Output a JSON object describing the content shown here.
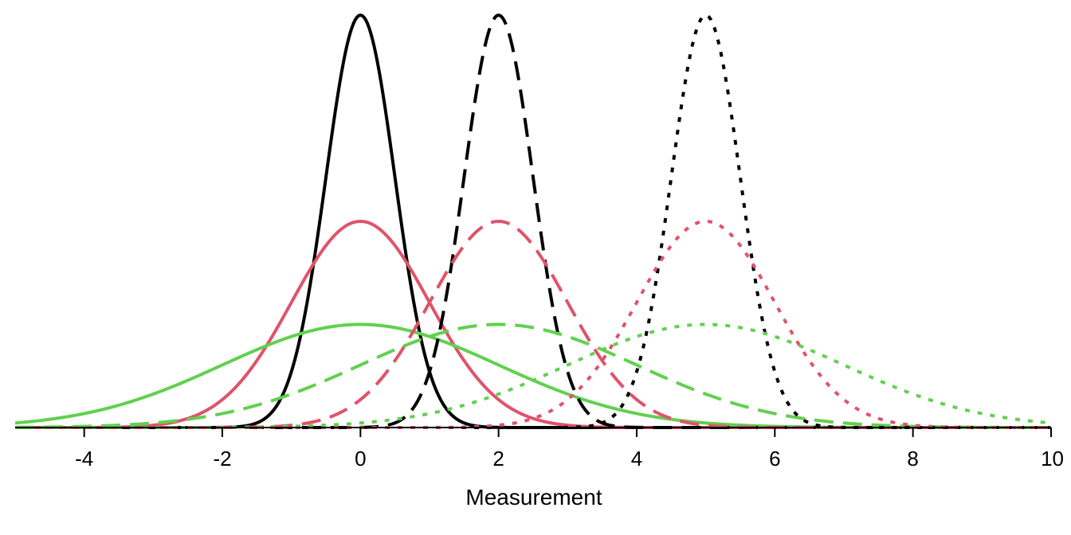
{
  "chart_data": {
    "type": "line",
    "title": "",
    "xlabel": "Measurement",
    "ylabel": "",
    "xlim": [
      -5,
      10
    ],
    "ylim": [
      0,
      0.4
    ],
    "x_ticks": [
      -4,
      -2,
      0,
      2,
      4,
      6,
      8,
      10
    ],
    "x_tick_labels": [
      "-4",
      "-2",
      "0",
      "2",
      "4",
      "6",
      "8",
      "10"
    ],
    "y_axis_visible": false,
    "grid": false,
    "legend": "none",
    "curve_type": "normal density",
    "series": [
      {
        "mean": 0,
        "sd": 0.5,
        "color": "#000000",
        "linestyle": "solid"
      },
      {
        "mean": 0,
        "sd": 1,
        "color": "#DF536B",
        "linestyle": "solid"
      },
      {
        "mean": 0,
        "sd": 2,
        "color": "#61D04F",
        "linestyle": "solid"
      },
      {
        "mean": 2,
        "sd": 0.5,
        "color": "#000000",
        "linestyle": "dashed"
      },
      {
        "mean": 2,
        "sd": 1,
        "color": "#DF536B",
        "linestyle": "dashed"
      },
      {
        "mean": 2,
        "sd": 2,
        "color": "#61D04F",
        "linestyle": "dashed"
      },
      {
        "mean": 5,
        "sd": 0.5,
        "color": "#000000",
        "linestyle": "dotted"
      },
      {
        "mean": 5,
        "sd": 1,
        "color": "#DF536B",
        "linestyle": "dotted"
      },
      {
        "mean": 5,
        "sd": 2,
        "color": "#61D04F",
        "linestyle": "dotted"
      }
    ]
  }
}
